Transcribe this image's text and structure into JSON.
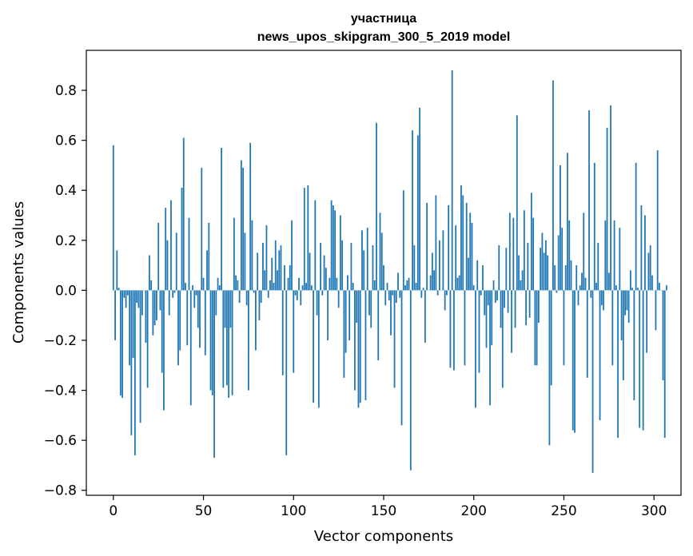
{
  "chart_data": {
    "type": "bar",
    "title": [
      "участница",
      "news_upos_skipgram_300_5_2019 model"
    ],
    "xlabel": "Vector components",
    "ylabel": "Components values",
    "xlim": [
      -15,
      315
    ],
    "ylim": [
      -0.82,
      0.96
    ],
    "xticks": [
      0,
      50,
      100,
      150,
      200,
      250,
      300
    ],
    "yticks": [
      -0.8,
      -0.6,
      -0.4,
      -0.2,
      0.0,
      0.2,
      0.4,
      0.6,
      0.8
    ],
    "ytick_labels": [
      "−0.8",
      "−0.6",
      "−0.4",
      "−0.2",
      "0.0",
      "0.2",
      "0.4",
      "0.6",
      "0.8"
    ],
    "bar_color": "#1f77b4",
    "values": [
      0.58,
      -0.2,
      0.16,
      0.01,
      -0.42,
      -0.43,
      -0.03,
      -0.07,
      -0.02,
      -0.3,
      -0.58,
      -0.27,
      -0.66,
      -0.05,
      -0.07,
      -0.53,
      -0.1,
      0.0,
      -0.21,
      -0.39,
      0.14,
      0.04,
      -0.18,
      -0.14,
      -0.12,
      0.27,
      -0.08,
      -0.33,
      -0.48,
      0.33,
      0.2,
      -0.1,
      0.36,
      -0.03,
      -0.01,
      0.23,
      -0.3,
      -0.24,
      0.41,
      0.61,
      0.03,
      -0.22,
      0.29,
      -0.46,
      0.02,
      -0.07,
      -0.02,
      -0.15,
      -0.23,
      0.49,
      0.05,
      -0.26,
      0.16,
      0.27,
      -0.4,
      -0.42,
      -0.67,
      -0.1,
      0.05,
      0.02,
      0.57,
      -0.39,
      -0.15,
      -0.38,
      -0.43,
      -0.15,
      -0.42,
      0.29,
      0.06,
      0.04,
      -0.05,
      0.52,
      0.49,
      0.23,
      -0.06,
      -0.4,
      0.59,
      0.28,
      -0.01,
      -0.24,
      0.15,
      -0.12,
      -0.05,
      0.19,
      0.08,
      0.26,
      -0.03,
      0.04,
      0.13,
      0.03,
      0.2,
      0.08,
      0.16,
      0.18,
      -0.34,
      0.1,
      -0.66,
      0.05,
      0.1,
      0.28,
      -0.33,
      -0.02,
      -0.04,
      0.05,
      -0.06,
      0.02,
      0.41,
      0.03,
      0.42,
      0.15,
      0.02,
      -0.45,
      0.36,
      -0.1,
      -0.47,
      0.19,
      -0.02,
      0.14,
      0.09,
      -0.2,
      0.05,
      0.36,
      0.34,
      0.32,
      0.05,
      -0.07,
      0.3,
      0.2,
      -0.35,
      -0.25,
      0.06,
      -0.2,
      0.19,
      0.03,
      -0.4,
      -0.13,
      -0.47,
      -0.45,
      0.24,
      0.16,
      -0.44,
      0.25,
      -0.1,
      -0.15,
      0.18,
      0.04,
      0.67,
      -0.28,
      0.31,
      0.23,
      0.1,
      -0.06,
      0.03,
      -0.04,
      -0.18,
      -0.02,
      -0.39,
      -0.05,
      0.07,
      -0.03,
      -0.54,
      0.4,
      0.02,
      0.04,
      0.05,
      -0.72,
      0.64,
      0.18,
      0.03,
      0.62,
      0.73,
      -0.03,
      0.01,
      -0.21,
      0.35,
      0.0,
      0.06,
      0.15,
      0.08,
      0.38,
      -0.02,
      0.2,
      0.0,
      0.24,
      -0.08,
      -0.02,
      0.34,
      -0.31,
      0.88,
      -0.32,
      0.26,
      0.05,
      0.06,
      0.42,
      0.38,
      -0.3,
      0.35,
      0.13,
      0.31,
      0.27,
      0.02,
      -0.47,
      0.12,
      -0.33,
      -0.02,
      0.1,
      -0.1,
      -0.23,
      -0.06,
      -0.46,
      -0.22,
      0.04,
      -0.05,
      -0.04,
      0.18,
      -0.15,
      -0.39,
      -0.07,
      0.17,
      -0.09,
      0.31,
      -0.25,
      0.29,
      -0.15,
      0.7,
      0.14,
      0.04,
      0.08,
      0.32,
      -0.14,
      0.19,
      -0.11,
      0.39,
      0.29,
      -0.3,
      -0.3,
      -0.13,
      0.17,
      0.23,
      0.15,
      0.2,
      0.14,
      -0.62,
      -0.38,
      0.84,
      0.1,
      -0.01,
      0.22,
      0.5,
      0.25,
      -0.3,
      0.1,
      0.55,
      0.28,
      0.12,
      -0.56,
      -0.57,
      0.1,
      -0.06,
      0.02,
      0.07,
      0.31,
      0.05,
      -0.35,
      0.72,
      -0.03,
      -0.73,
      0.51,
      0.03,
      0.19,
      -0.52,
      -0.06,
      -0.08,
      0.28,
      0.65,
      0.07,
      0.74,
      -0.3,
      0.28,
      0.02,
      -0.59,
      0.25,
      -0.2,
      -0.36,
      -0.1,
      -0.08,
      -0.13,
      0.08,
      0.01,
      -0.44,
      0.51,
      0.01,
      -0.55,
      0.34,
      -0.56,
      0.3,
      -0.25,
      0.15,
      0.18,
      0.06,
      0.0,
      -0.16,
      0.56,
      0.03,
      0.0,
      -0.36,
      -0.59,
      0.02
    ]
  }
}
